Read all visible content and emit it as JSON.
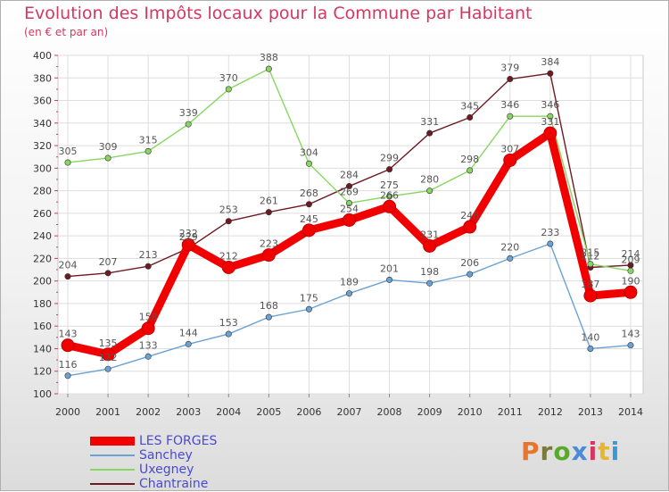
{
  "chart_data": {
    "type": "line",
    "title": "Evolution des Impôts locaux pour la Commune par Habitant",
    "subtitle": "(en € et par an)",
    "xlabel": "",
    "ylabel": "",
    "ylim": [
      100,
      400
    ],
    "yticks": [
      100,
      120,
      140,
      160,
      180,
      200,
      220,
      240,
      260,
      280,
      300,
      320,
      340,
      360,
      380,
      400
    ],
    "categories": [
      "2000",
      "2001",
      "2002",
      "2003",
      "2004",
      "2005",
      "2006",
      "2007",
      "2008",
      "2009",
      "2010",
      "2011",
      "2012",
      "2013",
      "2014"
    ],
    "series": [
      {
        "name": "Chantraine",
        "color": "#6e1a22",
        "values": [
          204,
          207,
          213,
          229,
          253,
          261,
          268,
          284,
          299,
          331,
          345,
          379,
          384,
          212,
          214
        ]
      },
      {
        "name": "Uxegney",
        "color": "#88d660",
        "values": [
          305,
          309,
          315,
          339,
          370,
          388,
          304,
          269,
          275,
          280,
          298,
          346,
          346,
          215,
          209
        ]
      },
      {
        "name": "Sanchey",
        "color": "#6aa2d6",
        "values": [
          116,
          122,
          133,
          144,
          153,
          168,
          175,
          189,
          201,
          198,
          206,
          220,
          233,
          140,
          143
        ]
      },
      {
        "name": "LES FORGES",
        "color": "#f20000",
        "values": [
          143,
          135,
          158,
          232,
          212,
          223,
          245,
          254,
          266,
          231,
          248,
          307,
          331,
          187,
          190
        ]
      }
    ],
    "legend": [
      "LES FORGES",
      "Sanchey",
      "Uxegney",
      "Chantraine"
    ],
    "legend_position": "bottom-left",
    "grid": true
  },
  "logo_text": "Proxiti"
}
